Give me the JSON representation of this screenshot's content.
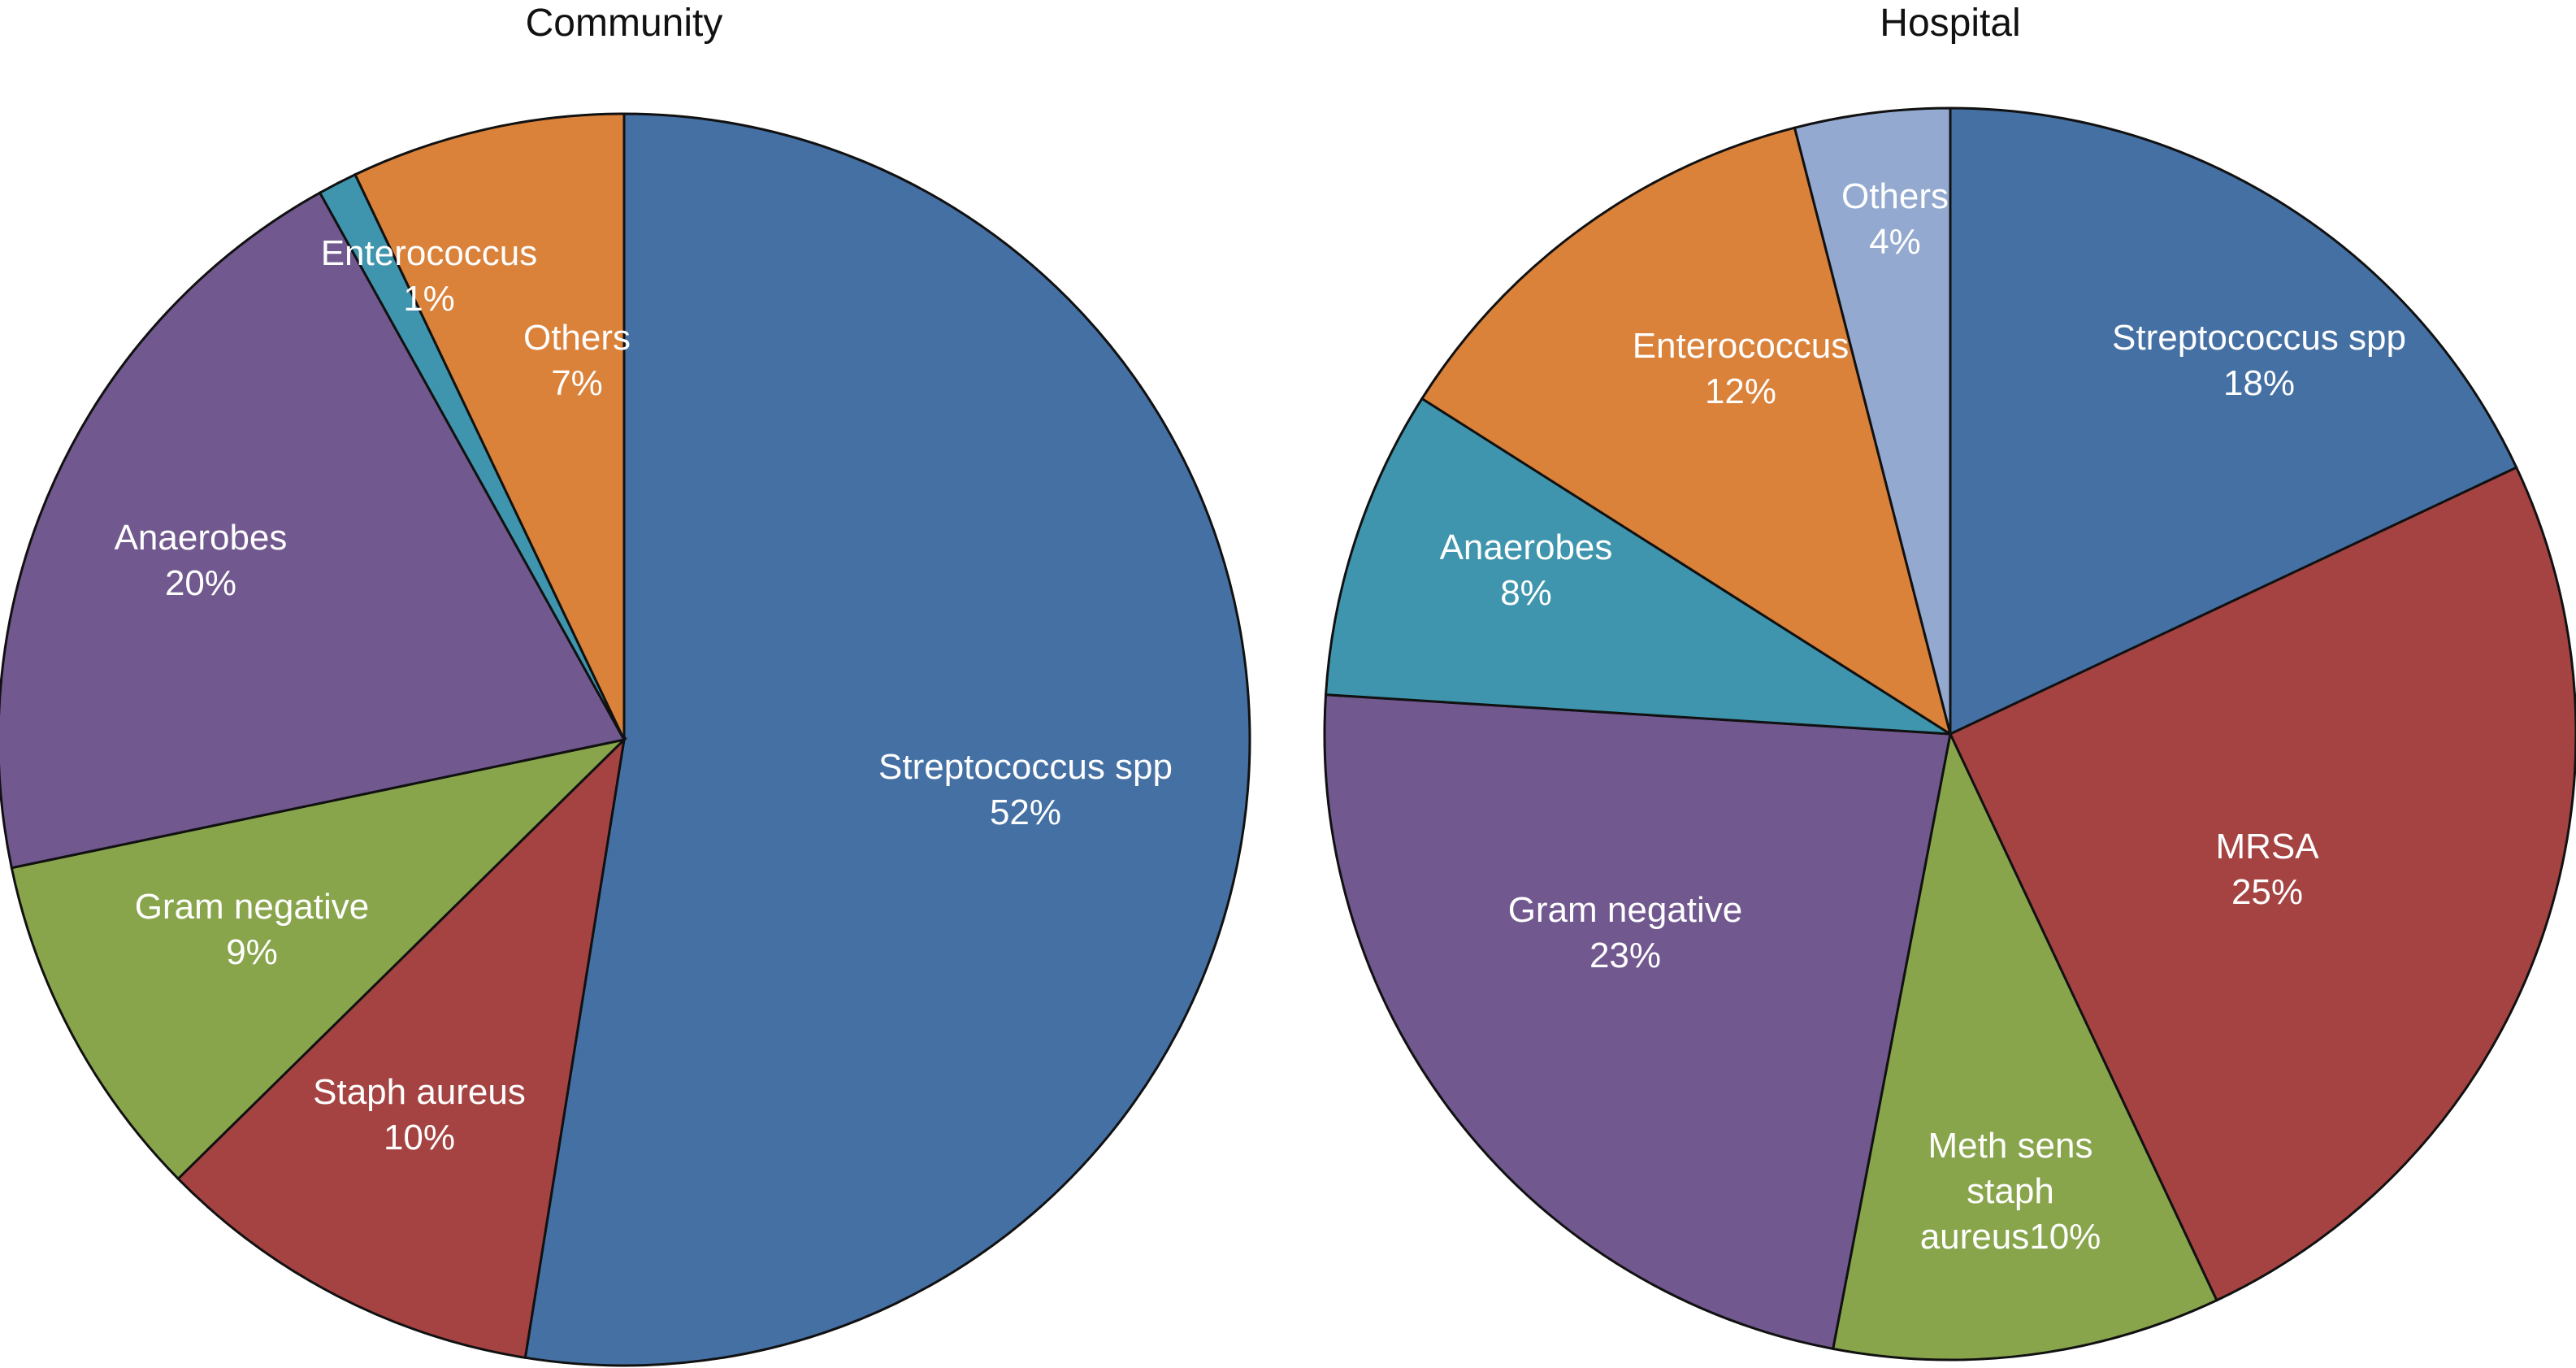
{
  "chart_data": [
    {
      "type": "pie",
      "title": "Community",
      "slices": [
        {
          "label": [
            "Streptococcus spp",
            "52%"
          ],
          "value": 52,
          "color": "#4570a4"
        },
        {
          "label": [
            "Staph aureus",
            "10%"
          ],
          "value": 10,
          "color": "#a54342"
        },
        {
          "label": [
            "Gram negative",
            "9%"
          ],
          "value": 9,
          "color": "#88a54c"
        },
        {
          "label": [
            "Anaerobes",
            "20%"
          ],
          "value": 20,
          "color": "#71588f"
        },
        {
          "label": [
            "Enterococcus",
            "1%"
          ],
          "value": 1,
          "color": "#3f95ad"
        },
        {
          "label": [
            "Others",
            "7%"
          ],
          "value": 7,
          "color": "#da813a"
        }
      ]
    },
    {
      "type": "pie",
      "title": "Hospital",
      "slices": [
        {
          "label": [
            "Streptococcus spp",
            "18%"
          ],
          "value": 18,
          "color": "#4570a4"
        },
        {
          "label": [
            "MRSA",
            "25%"
          ],
          "value": 25,
          "color": "#a54342"
        },
        {
          "label": [
            "Meth sens",
            "staph",
            "aureus10%"
          ],
          "value": 10,
          "color": "#88a54c"
        },
        {
          "label": [
            "Gram negative",
            "23%"
          ],
          "value": 23,
          "color": "#71588f"
        },
        {
          "label": [
            "Anaerobes",
            "8%"
          ],
          "value": 8,
          "color": "#3f95ad"
        },
        {
          "label": [
            "Enterococcus",
            "12%"
          ],
          "value": 12,
          "color": "#da813a"
        },
        {
          "label": [
            "Others",
            "4%"
          ],
          "value": 4,
          "color": "#93a9d0"
        }
      ]
    }
  ]
}
